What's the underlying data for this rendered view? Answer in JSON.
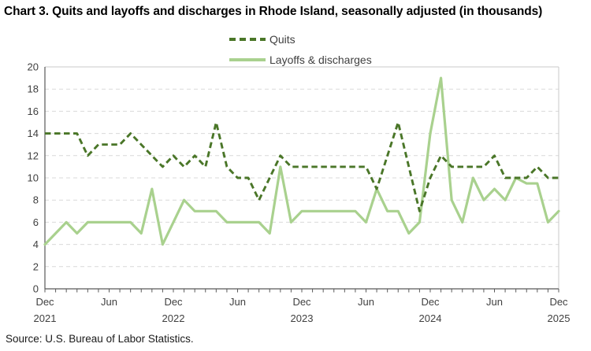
{
  "page": {
    "title": "Chart 3. Quits and layoffs and discharges in Rhode Island, seasonally adjusted (in thousands)",
    "source": "Source: U.S. Bureau of Labor Statistics."
  },
  "colors": {
    "quits_line": "#4a7628",
    "layoffs_line": "#a9d18e",
    "axis_text": "#404040",
    "legend_text": "#404040",
    "gridline": "#d9d9d9",
    "axis_line": "#595959",
    "plot_border": "#c9c9c9"
  },
  "chart_data": {
    "type": "line",
    "title": "Chart 3. Quits and layoffs and discharges in Rhode Island, seasonally adjusted (in thousands)",
    "xlabel": "",
    "ylabel": "",
    "ylim": [
      0,
      20
    ],
    "y_tick_step": 2,
    "y_tick_labels": [
      "0",
      "2",
      "4",
      "6",
      "8",
      "10",
      "12",
      "14",
      "16",
      "18",
      "20"
    ],
    "grid": "horizontal-dashed",
    "legend_position": "top-center",
    "x": [
      "Dec 2021",
      "Jan 2022",
      "Feb 2022",
      "Mar 2022",
      "Apr 2022",
      "May 2022",
      "Jun 2022",
      "Jul 2022",
      "Aug 2022",
      "Sep 2022",
      "Oct 2022",
      "Nov 2022",
      "Dec 2022",
      "Jan 2023",
      "Feb 2023",
      "Mar 2023",
      "Apr 2023",
      "May 2023",
      "Jun 2023",
      "Jul 2023",
      "Aug 2023",
      "Sep 2023",
      "Oct 2023",
      "Nov 2023",
      "Dec 2023",
      "Jan 2024",
      "Feb 2024",
      "Mar 2024",
      "Apr 2024",
      "May 2024",
      "Jun 2024",
      "Jul 2024",
      "Aug 2024",
      "Sep 2024",
      "Oct 2024",
      "Nov 2024",
      "Dec 2024",
      "Jan 2025",
      "Feb 2025",
      "Mar 2025",
      "Apr 2025",
      "May 2025",
      "Jun 2025",
      "Jul 2025",
      "Aug 2025",
      "Sep 2025",
      "Oct 2025",
      "Nov 2025",
      "Dec 2025"
    ],
    "x_ticks": [
      {
        "index": 0,
        "label": "Dec",
        "year": "2021"
      },
      {
        "index": 6,
        "label": "Jun",
        "year": ""
      },
      {
        "index": 12,
        "label": "Dec",
        "year": "2022"
      },
      {
        "index": 18,
        "label": "Jun",
        "year": ""
      },
      {
        "index": 24,
        "label": "Dec",
        "year": "2023"
      },
      {
        "index": 30,
        "label": "Jun",
        "year": ""
      },
      {
        "index": 36,
        "label": "Dec",
        "year": "2024"
      },
      {
        "index": 42,
        "label": "Jun",
        "year": ""
      },
      {
        "index": 48,
        "label": "Dec",
        "year": "2025"
      }
    ],
    "series": [
      {
        "name": "Quits",
        "style": "dashed",
        "values": [
          14,
          14,
          14,
          14,
          12,
          13,
          13,
          13,
          14,
          13,
          12,
          11,
          12,
          11,
          12,
          11,
          15,
          11,
          10,
          10,
          8,
          10,
          12,
          11,
          11,
          11,
          11,
          11,
          11,
          11,
          11,
          9,
          12,
          15,
          11,
          7,
          10,
          12,
          11,
          11,
          11,
          11,
          12,
          10,
          10,
          10,
          11,
          10,
          10
        ]
      },
      {
        "name": "Layoffs & discharges",
        "style": "solid",
        "values": [
          4,
          5,
          6,
          5,
          6,
          6,
          6,
          6,
          6,
          5,
          9,
          4,
          6,
          8,
          7,
          7,
          7,
          6,
          6,
          6,
          6,
          5,
          11,
          6,
          7,
          7,
          7,
          7,
          7,
          7,
          6,
          9,
          7,
          7,
          5,
          6,
          14,
          19,
          8,
          6,
          10,
          8,
          9,
          8,
          10,
          9.5,
          9.5,
          6,
          7
        ]
      }
    ]
  }
}
